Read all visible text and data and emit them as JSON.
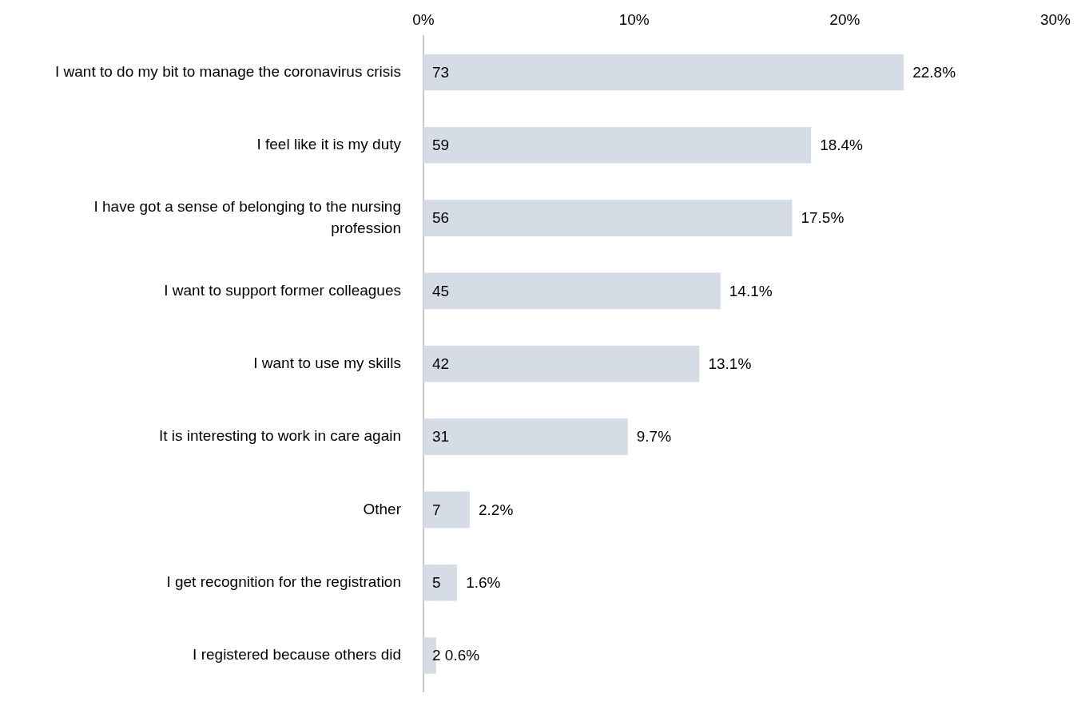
{
  "chart_data": {
    "type": "bar",
    "orientation": "horizontal",
    "categories": [
      "I want to do my bit to manage the coronavirus crisis",
      "I feel like it is my duty",
      "I have got a sense of belonging to the nursing profession",
      "I want to support former colleagues",
      "I want to use my skills",
      "It is interesting to work in care again",
      "Other",
      "I get recognition for the registration",
      "I registered because others did"
    ],
    "values": [
      22.8,
      18.4,
      17.5,
      14.1,
      13.1,
      9.7,
      2.2,
      1.6,
      0.6
    ],
    "value_labels": [
      "22.8%",
      "18.4%",
      "17.5%",
      "14.1%",
      "13.1%",
      "9.7%",
      "2.2%",
      "1.6%",
      "0.6%"
    ],
    "color": "#d6dce6",
    "xlim": [
      0,
      30
    ],
    "xticks": [
      {
        "value": 0,
        "label": "0%"
      },
      {
        "value": 10,
        "label": "10%"
      },
      {
        "value": 20,
        "label": "20%"
      },
      {
        "value": 30,
        "label": "30%"
      }
    ],
    "grid": false,
    "annotations": [
      "73",
      "59",
      "56",
      "45",
      "42",
      "31",
      "7",
      "5",
      "2"
    ]
  }
}
